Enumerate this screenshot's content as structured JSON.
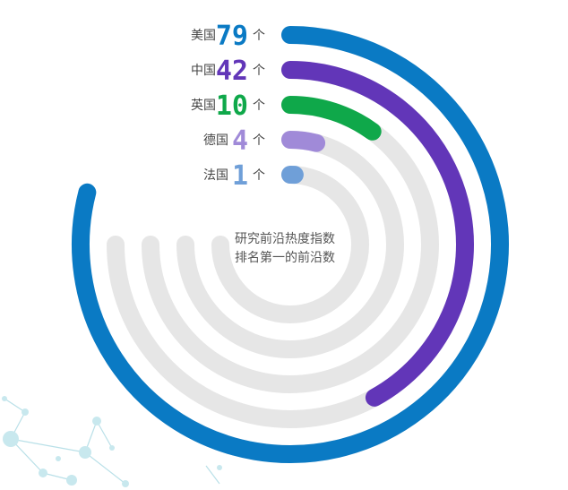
{
  "chart_data": {
    "type": "radial-bar",
    "title": "",
    "center_note_lines": [
      "研究前沿热度指数",
      "排名第一的前沿数"
    ],
    "unit": "个",
    "max_value": 100,
    "categories": [
      "美国",
      "中国",
      "英国",
      "德国",
      "法国"
    ],
    "values": [
      79,
      42,
      10,
      4,
      1
    ],
    "colors": [
      "#0a7ac4",
      "#6236b8",
      "#0fa84a",
      "#a08ad8",
      "#6f9fd8"
    ],
    "track_color": "#e6e6e6"
  }
}
